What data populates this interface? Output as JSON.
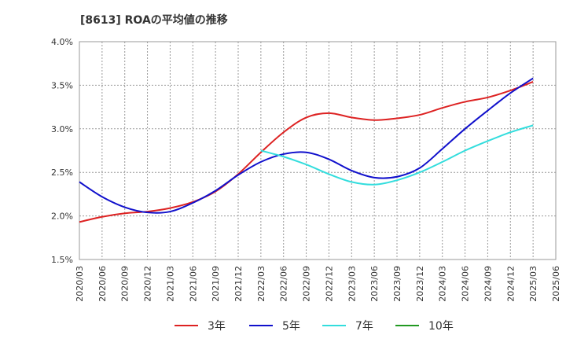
{
  "chart_data": {
    "type": "line",
    "title": "[8613]  ROAの平均値の推移",
    "xlabel": "",
    "ylabel": "",
    "grid": true,
    "legend_position": "bottom",
    "ylim": [
      1.5,
      4.0
    ],
    "y_ticks": [
      "1.5%",
      "2.0%",
      "2.5%",
      "3.0%",
      "3.5%",
      "4.0%"
    ],
    "x_ticks": [
      "2020/03",
      "2020/06",
      "2020/09",
      "2020/12",
      "2021/03",
      "2021/06",
      "2021/09",
      "2021/12",
      "2022/03",
      "2022/06",
      "2022/09",
      "2022/12",
      "2023/03",
      "2023/06",
      "2023/09",
      "2023/12",
      "2024/03",
      "2024/06",
      "2024/09",
      "2024/12",
      "2025/03",
      "2025/06"
    ],
    "series": [
      {
        "name": "3年",
        "color": "#dd2222",
        "start_index": 0,
        "values": [
          1.93,
          1.99,
          2.03,
          2.05,
          2.09,
          2.16,
          2.28,
          2.48,
          2.73,
          2.96,
          3.13,
          3.18,
          3.13,
          3.1,
          3.12,
          3.16,
          3.24,
          3.31,
          3.36,
          3.44,
          3.54
        ]
      },
      {
        "name": "5年",
        "color": "#1010cc",
        "start_index": 0,
        "values": [
          2.39,
          2.22,
          2.1,
          2.04,
          2.05,
          2.15,
          2.29,
          2.47,
          2.62,
          2.71,
          2.73,
          2.65,
          2.52,
          2.44,
          2.45,
          2.55,
          2.77,
          3.0,
          3.21,
          3.41,
          3.58
        ]
      },
      {
        "name": "7年",
        "color": "#33dddd",
        "start_index": 8,
        "values": [
          2.75,
          2.68,
          2.59,
          2.48,
          2.39,
          2.36,
          2.41,
          2.5,
          2.62,
          2.75,
          2.86,
          2.96,
          3.04
        ]
      },
      {
        "name": "10年",
        "color": "#229922",
        "start_index": 0,
        "values": []
      }
    ]
  }
}
